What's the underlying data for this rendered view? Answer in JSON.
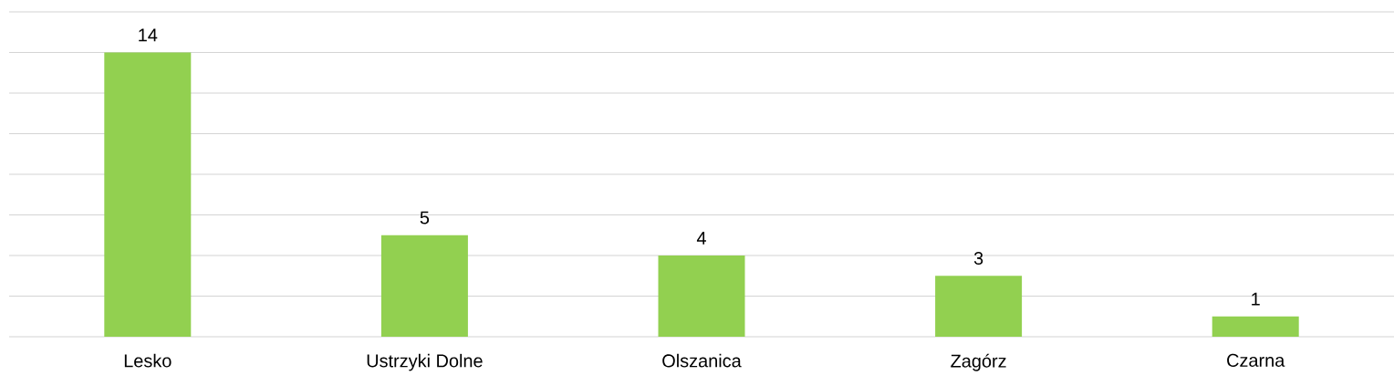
{
  "chart_data": {
    "type": "bar",
    "categories": [
      "Lesko",
      "Ustrzyki Dolne",
      "Olszanica",
      "Zagórz",
      "Czarna"
    ],
    "values": [
      14,
      5,
      4,
      3,
      1
    ],
    "color": "#92d050",
    "ylim": [
      0,
      16
    ],
    "yticks": [
      {
        "value": 0,
        "label": null
      },
      {
        "value": 2,
        "label": null
      },
      {
        "value": 4,
        "label": null
      },
      {
        "value": 6,
        "label": null
      },
      {
        "value": 8,
        "label": null
      },
      {
        "value": 10,
        "label": null
      },
      {
        "value": 12,
        "label": null
      },
      {
        "value": 14,
        "label": null
      },
      {
        "value": 16,
        "label": null
      }
    ],
    "grid": "y",
    "tick_labels": "x",
    "data_labels": true
  }
}
